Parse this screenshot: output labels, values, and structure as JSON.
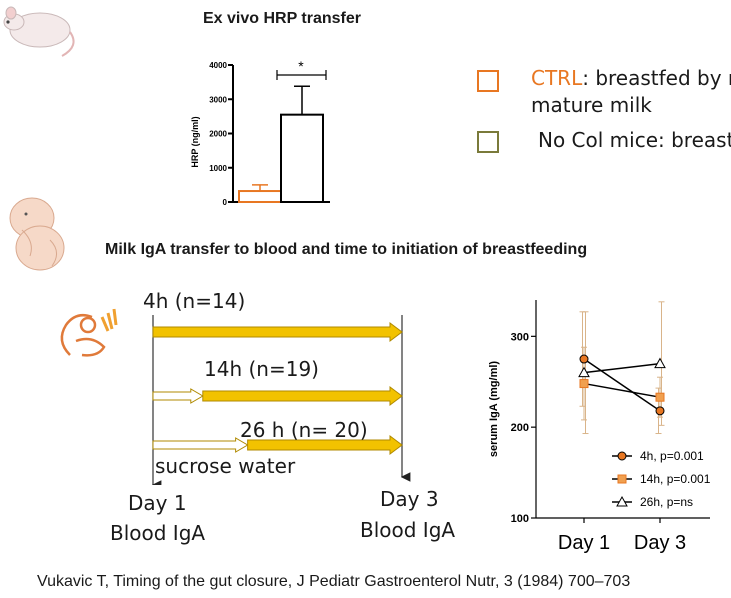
{
  "top": {
    "title": "Ex vivo HRP transfer",
    "legend": [
      {
        "prefix": "CTRL",
        "text": ": breastfed by m",
        "line2": "mature milk",
        "color": "#e87722"
      },
      {
        "prefix": "",
        "text": "No Col mice: breastf",
        "line2": "",
        "color": "#7a7a3a"
      }
    ]
  },
  "middle": {
    "title": "Milk IgA transfer to blood  and time to initiation of breastfeeding"
  },
  "timeline": {
    "rows": [
      {
        "label": "4h (n=14)",
        "start_fraction": 0
      },
      {
        "label": "14h (n=19)",
        "start_fraction": 0.2
      },
      {
        "label": "26 h (n= 20)",
        "start_fraction": 0.38
      }
    ],
    "sucrose_label": "sucrose water",
    "day1": {
      "day": "Day 1",
      "note": "Blood IgA"
    },
    "day3": {
      "day": "Day 3",
      "note": "Blood IgA"
    }
  },
  "footer": {
    "citation": "Vukavic T, Timing of the gut closure, J Pediatr Gastroenterol Nutr, 3 (1984) 700–703"
  },
  "colors": {
    "orange": "#e87722",
    "gold": "#f2c200",
    "gold_edge": "#b08a00"
  },
  "chart_data": [
    {
      "type": "bar",
      "title": "",
      "ylabel": "HRP (ng/ml)",
      "ylim": [
        0,
        4000
      ],
      "yticks": [
        "0",
        "1000",
        "2000",
        "3000",
        "4000"
      ],
      "categories": [
        "CTRL",
        "No Col"
      ],
      "values": [
        320,
        2550
      ],
      "errors": [
        180,
        830
      ],
      "significance": "*"
    },
    {
      "type": "line",
      "ylabel": "serum IgA (mg/ml)",
      "ylim": [
        100,
        340
      ],
      "yticks": [
        "100",
        "200",
        "300"
      ],
      "categories": [
        "Day 1",
        "Day 3"
      ],
      "series": [
        {
          "name": "4h, p=0.001",
          "marker": "circle",
          "values": [
            275,
            218
          ],
          "errors": [
            52,
            25
          ]
        },
        {
          "name": "14h, p=0.001",
          "marker": "square",
          "values": [
            248,
            233
          ],
          "errors": [
            40,
            22
          ]
        },
        {
          "name": "26h, p=ns",
          "marker": "triangle",
          "values": [
            260,
            270
          ],
          "errors": [
            67,
            68
          ]
        }
      ]
    }
  ]
}
